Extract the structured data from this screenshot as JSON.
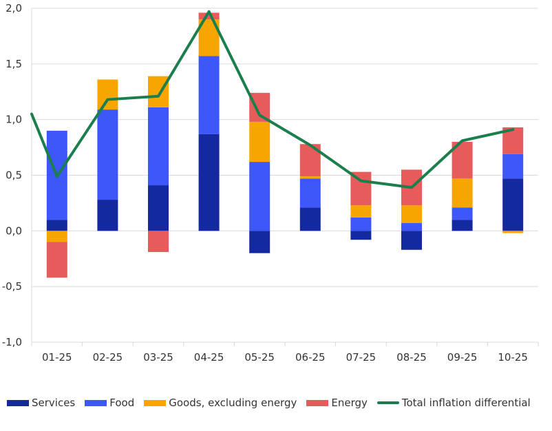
{
  "chart_data": {
    "type": "bar",
    "stacked": true,
    "categories": [
      "01-25",
      "02-25",
      "03-25",
      "04-25",
      "05-25",
      "06-25",
      "07-25",
      "08-25",
      "09-25",
      "10-25"
    ],
    "ylim": [
      -1.0,
      2.0
    ],
    "yticks": [
      -1.0,
      -0.5,
      0.0,
      0.5,
      1.0,
      1.5,
      2.0
    ],
    "ytick_labels": [
      "-1,0",
      "-0,5",
      "0,0",
      "0,5",
      "1,0",
      "1,5",
      "2,0"
    ],
    "grid": true,
    "legend_position": "bottom",
    "series": [
      {
        "name": "Services",
        "color": "#1428A0",
        "values": [
          0.1,
          0.28,
          0.41,
          0.87,
          -0.2,
          0.21,
          -0.08,
          -0.17,
          0.1,
          0.47
        ]
      },
      {
        "name": "Food",
        "color": "#3D57FA",
        "values": [
          0.8,
          0.81,
          0.7,
          0.7,
          0.62,
          0.26,
          0.12,
          0.07,
          0.11,
          0.22
        ]
      },
      {
        "name": "Goods, excluding energy",
        "color": "#F7A600",
        "values": [
          -0.1,
          0.27,
          0.28,
          0.33,
          0.36,
          0.02,
          0.11,
          0.16,
          0.26,
          -0.02
        ]
      },
      {
        "name": "Energy",
        "color": "#E85B5B",
        "values": [
          -0.32,
          0.0,
          -0.19,
          0.06,
          0.26,
          0.29,
          0.3,
          0.32,
          0.33,
          0.24
        ]
      }
    ],
    "line": {
      "name": "Total inflation differential",
      "color": "#1A7F4D",
      "values": [
        0.49,
        1.18,
        1.21,
        1.97,
        1.04,
        0.77,
        0.45,
        0.39,
        0.81,
        0.91
      ],
      "start_value": 1.05
    }
  }
}
